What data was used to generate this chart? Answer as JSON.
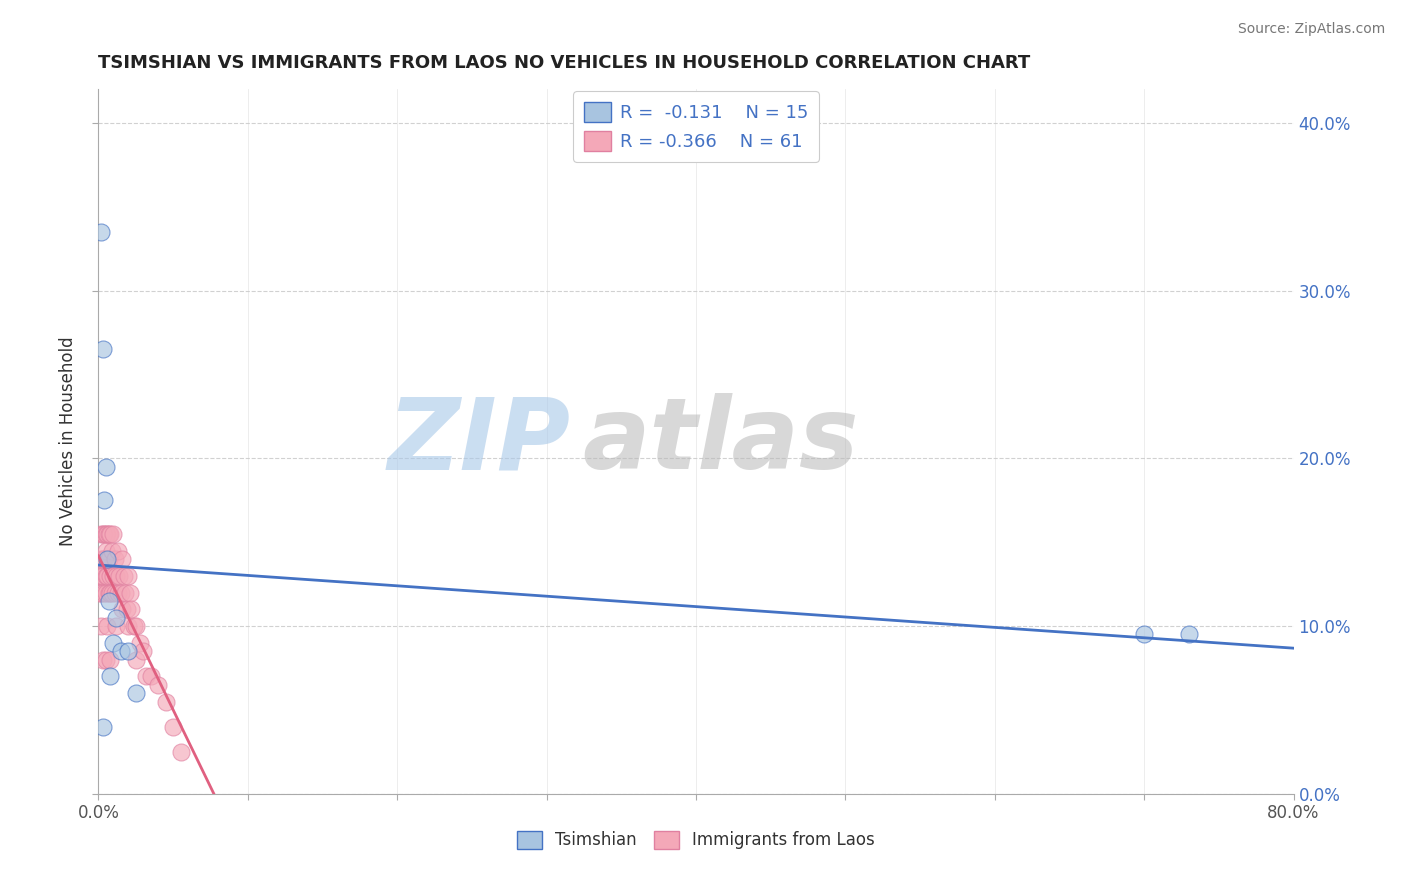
{
  "title": "TSIMSHIAN VS IMMIGRANTS FROM LAOS NO VEHICLES IN HOUSEHOLD CORRELATION CHART",
  "source_text": "Source: ZipAtlas.com",
  "xlabel": "",
  "ylabel": "No Vehicles in Household",
  "legend_label_1": "Tsimshian",
  "legend_label_2": "Immigrants from Laos",
  "r1": -0.131,
  "n1": 15,
  "r2": -0.366,
  "n2": 61,
  "color1": "#a8c4e0",
  "color2": "#f4a8b8",
  "line_color1": "#4472c4",
  "line_color2": "#e06080",
  "bg_color": "#ffffff",
  "grid_color": "#cccccc",
  "xlim": [
    0.0,
    0.8
  ],
  "ylim": [
    0.0,
    0.42
  ],
  "watermark_zip": "#a8c8e8",
  "watermark_atlas": "#c0c0c0",
  "x_tick_labels_show": [
    "0.0%",
    "80.0%"
  ],
  "x_tick_positions_show": [
    0.0,
    0.8
  ],
  "x_tick_positions_all": [
    0.0,
    0.1,
    0.2,
    0.3,
    0.4,
    0.5,
    0.6,
    0.7,
    0.8
  ],
  "y_ticks": [
    0.0,
    0.1,
    0.2,
    0.3,
    0.4
  ],
  "y_tick_labels": [
    "0.0%",
    "10.0%",
    "20.0%",
    "30.0%",
    "40.0%"
  ],
  "tsimshian_x": [
    0.002,
    0.003,
    0.004,
    0.005,
    0.006,
    0.007,
    0.008,
    0.01,
    0.012,
    0.015,
    0.02,
    0.025,
    0.7,
    0.73,
    0.003
  ],
  "tsimshian_y": [
    0.335,
    0.265,
    0.175,
    0.195,
    0.14,
    0.115,
    0.07,
    0.09,
    0.105,
    0.085,
    0.085,
    0.06,
    0.095,
    0.095,
    0.04
  ],
  "laos_x": [
    0.001,
    0.001,
    0.002,
    0.002,
    0.002,
    0.002,
    0.002,
    0.003,
    0.003,
    0.003,
    0.003,
    0.004,
    0.004,
    0.004,
    0.005,
    0.005,
    0.005,
    0.005,
    0.005,
    0.006,
    0.006,
    0.006,
    0.007,
    0.007,
    0.007,
    0.008,
    0.008,
    0.008,
    0.008,
    0.009,
    0.009,
    0.01,
    0.01,
    0.011,
    0.011,
    0.012,
    0.012,
    0.013,
    0.013,
    0.014,
    0.015,
    0.016,
    0.016,
    0.017,
    0.018,
    0.019,
    0.02,
    0.02,
    0.021,
    0.022,
    0.024,
    0.025,
    0.025,
    0.028,
    0.03,
    0.032,
    0.035,
    0.04,
    0.045,
    0.05,
    0.055
  ],
  "laos_y": [
    0.13,
    0.12,
    0.155,
    0.14,
    0.13,
    0.12,
    0.1,
    0.155,
    0.14,
    0.13,
    0.08,
    0.155,
    0.14,
    0.12,
    0.155,
    0.145,
    0.13,
    0.12,
    0.08,
    0.155,
    0.13,
    0.1,
    0.155,
    0.14,
    0.12,
    0.155,
    0.13,
    0.12,
    0.08,
    0.145,
    0.12,
    0.155,
    0.13,
    0.14,
    0.12,
    0.13,
    0.1,
    0.145,
    0.12,
    0.13,
    0.12,
    0.14,
    0.11,
    0.13,
    0.12,
    0.11,
    0.13,
    0.1,
    0.12,
    0.11,
    0.1,
    0.1,
    0.08,
    0.09,
    0.085,
    0.07,
    0.07,
    0.065,
    0.055,
    0.04,
    0.025
  ]
}
